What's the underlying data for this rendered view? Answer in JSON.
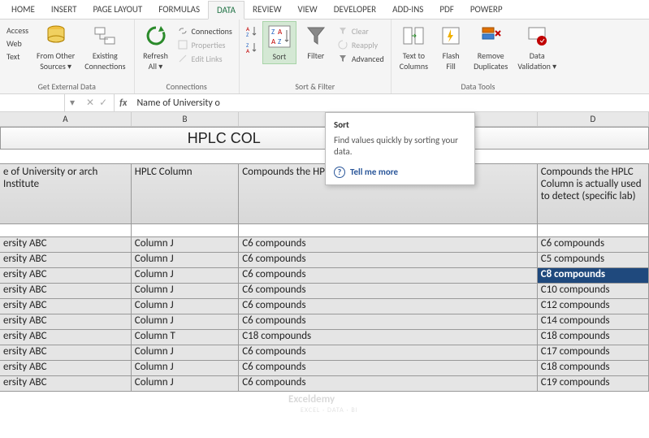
{
  "tabs": [
    "HOME",
    "INSERT",
    "PAGE LAYOUT",
    "FORMULAS",
    "DATA",
    "REVIEW",
    "VIEW",
    "DEVELOPER",
    "ADD-INS",
    "PDF",
    "POWERP"
  ],
  "activeTab": "DATA",
  "ribbon": {
    "external": {
      "access": "Access",
      "web": "Web",
      "text": "Text",
      "fromOther": "From Other\nSources ▾",
      "existing": "Existing\nConnections",
      "label": "Get External Data"
    },
    "connections": {
      "refresh": "Refresh\nAll ▾",
      "items": [
        "Connections",
        "Properties",
        "Edit Links"
      ],
      "label": "Connections"
    },
    "sortFilter": {
      "sort": "Sort",
      "filter": "Filter",
      "items": [
        "Clear",
        "Reapply",
        "Advanced"
      ],
      "label": "Sort & Filter"
    },
    "dataTools": {
      "textToCols": "Text to\nColumns",
      "flashFill": "Flash\nFill",
      "removeDup": "Remove\nDuplicates",
      "dataVal": "Data\nValidation ▾",
      "label": "Data Tools"
    }
  },
  "formulaBar": {
    "nameBox": "",
    "text": "Name of University o"
  },
  "columns": [
    "A",
    "B",
    "C",
    "D"
  ],
  "titleRow": "HPLC COL                                  HE AREA",
  "headers": {
    "A": "e of University or arch Institute",
    "B": "HPLC Column",
    "C": "Compounds the HPLC Column can Detect (Supplier)",
    "D": "Compounds the HPLC Column is actually used to detect (specific lab)"
  },
  "rows": [
    {
      "a": "ersity ABC",
      "b": "Column J",
      "c": "C6 compounds",
      "d": "C6 compounds",
      "sel": false
    },
    {
      "a": "ersity ABC",
      "b": "Column J",
      "c": "C6 compounds",
      "d": "C5 compounds",
      "sel": false
    },
    {
      "a": "ersity ABC",
      "b": "Column J",
      "c": "C6 compounds",
      "d": "C8 compounds",
      "sel": true
    },
    {
      "a": "ersity ABC",
      "b": "Column J",
      "c": "C6 compounds",
      "d": "C10 compounds",
      "sel": false
    },
    {
      "a": "ersity ABC",
      "b": "Column J",
      "c": "C6 compounds",
      "d": "C12 compounds",
      "sel": false
    },
    {
      "a": "ersity ABC",
      "b": "Column J",
      "c": "C6 compounds",
      "d": "C14 compounds",
      "sel": false
    },
    {
      "a": "ersity ABC",
      "b": "Column T",
      "c": "C18 compounds",
      "d": "C18 compounds",
      "sel": false
    },
    {
      "a": "ersity ABC",
      "b": "Column J",
      "c": "C6 compounds",
      "d": "C17 compounds",
      "sel": false
    },
    {
      "a": "ersity ABC",
      "b": "Column J",
      "c": "C6 compounds",
      "d": "C18 compounds",
      "sel": false
    },
    {
      "a": "ersity ABC",
      "b": "Column J",
      "c": "C6 compounds",
      "d": "C19 compounds",
      "sel": false
    }
  ],
  "tooltip": {
    "title": "Sort",
    "body": "Find values quickly by sorting your data.",
    "link": "Tell me more"
  },
  "watermark": {
    "main": "Exceldemy",
    "sub": "EXCEL · DATA · BI"
  }
}
